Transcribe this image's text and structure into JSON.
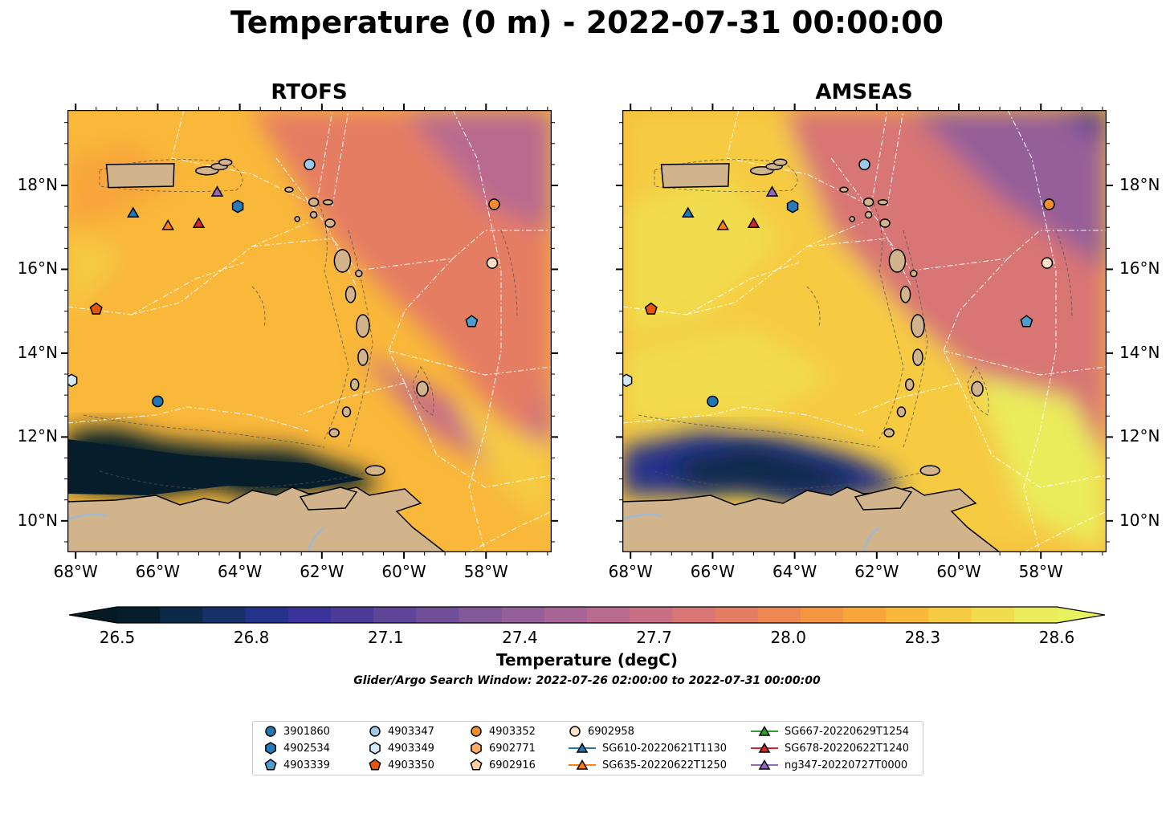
{
  "figure": {
    "suptitle": "Temperature (0 m) - 2022-07-31 00:00:00",
    "search_window": "Glider/Argo Search Window: 2022-07-26 02:00:00 to 2022-07-31 00:00:00"
  },
  "panels": [
    {
      "title": "RTOFS"
    },
    {
      "title": "AMSEAS"
    }
  ],
  "map_extent": {
    "lon": [
      -68.2,
      -56.4
    ],
    "lat": [
      9.25,
      19.8
    ]
  },
  "axes": {
    "lon_ticks": [
      {
        "value": -68,
        "label": "68°W"
      },
      {
        "value": -66,
        "label": "66°W"
      },
      {
        "value": -64,
        "label": "64°W"
      },
      {
        "value": -62,
        "label": "62°W"
      },
      {
        "value": -60,
        "label": "60°W"
      },
      {
        "value": -58,
        "label": "58°W"
      }
    ],
    "lat_ticks": [
      {
        "value": 18,
        "label": "18°N"
      },
      {
        "value": 16,
        "label": "16°N"
      },
      {
        "value": 14,
        "label": "14°N"
      },
      {
        "value": 12,
        "label": "12°N"
      },
      {
        "value": 10,
        "label": "10°N"
      }
    ]
  },
  "colorbar": {
    "label": "Temperature (degC)",
    "ticks": [
      "26.5",
      "26.8",
      "27.1",
      "27.4",
      "27.7",
      "28.0",
      "28.3",
      "28.6"
    ],
    "min": 26.5,
    "max": 28.6,
    "extend": "both",
    "colors": [
      "#061e2c",
      "#0c2a48",
      "#17306a",
      "#25328a",
      "#38329a",
      "#4c3a99",
      "#5e4597",
      "#714f98",
      "#835899",
      "#955f99",
      "#a86596",
      "#b96a8f",
      "#c96f84",
      "#d87575",
      "#e57d63",
      "#ee8751",
      "#f49541",
      "#f8a63a",
      "#f9b83a",
      "#f6cb42",
      "#f1dc4d",
      "#eaec5c"
    ],
    "under_color": "#051a25",
    "over_color": "#e8f25e"
  },
  "colors": {
    "land": "#d2b48c",
    "river": "#a0b8d0",
    "boundary": "#ffffff"
  },
  "markers": [
    {
      "id": "3901860",
      "shape": "circle",
      "color": "#1f77b4",
      "lon": -66.0,
      "lat": 12.85
    },
    {
      "id": "4902534",
      "shape": "hexagon",
      "color": "#2a7ab8",
      "lon": -64.05,
      "lat": 17.5
    },
    {
      "id": "4903339",
      "shape": "pentagon",
      "color": "#4f9cd0",
      "lon": -58.35,
      "lat": 14.75
    },
    {
      "id": "4903347",
      "shape": "circle",
      "color": "#9ecae9",
      "lon": -62.3,
      "lat": 18.5
    },
    {
      "id": "4903349",
      "shape": "hexagon",
      "color": "#d4e8f7",
      "lon": -68.1,
      "lat": 13.35
    },
    {
      "id": "4903350",
      "shape": "pentagon",
      "color": "#e6550d",
      "lon": -67.5,
      "lat": 15.05
    },
    {
      "id": "4903352",
      "shape": "circle",
      "color": "#f28e2b",
      "lon": -57.8,
      "lat": 17.55
    },
    {
      "id": "6902771",
      "shape": "hexagon",
      "color": "#fdae6b",
      "lon": null,
      "lat": null
    },
    {
      "id": "6902916",
      "shape": "pentagon",
      "color": "#fdd0a2",
      "lon": null,
      "lat": null
    },
    {
      "id": "6902958",
      "shape": "circle",
      "color": "#fde0c5",
      "lon": -57.85,
      "lat": 16.15
    },
    {
      "id": "SG610-20220621T1130",
      "shape": "triangle",
      "color": "#1f77b4",
      "lon": -66.6,
      "lat": 17.35
    },
    {
      "id": "SG635-20220622T1250",
      "shape": "triangle",
      "color": "#ff7f0e",
      "lon": -65.75,
      "lat": 17.05
    },
    {
      "id": "SG667-20220629T1254",
      "shape": "triangle",
      "color": "#2ca02c",
      "lon": null,
      "lat": null
    },
    {
      "id": "SG678-20220622T1240",
      "shape": "triangle",
      "color": "#d62728",
      "lon": -65.0,
      "lat": 17.1
    },
    {
      "id": "ng347-20220727T0000",
      "shape": "triangle",
      "color": "#9467bd",
      "lon": -64.55,
      "lat": 17.85
    }
  ]
}
